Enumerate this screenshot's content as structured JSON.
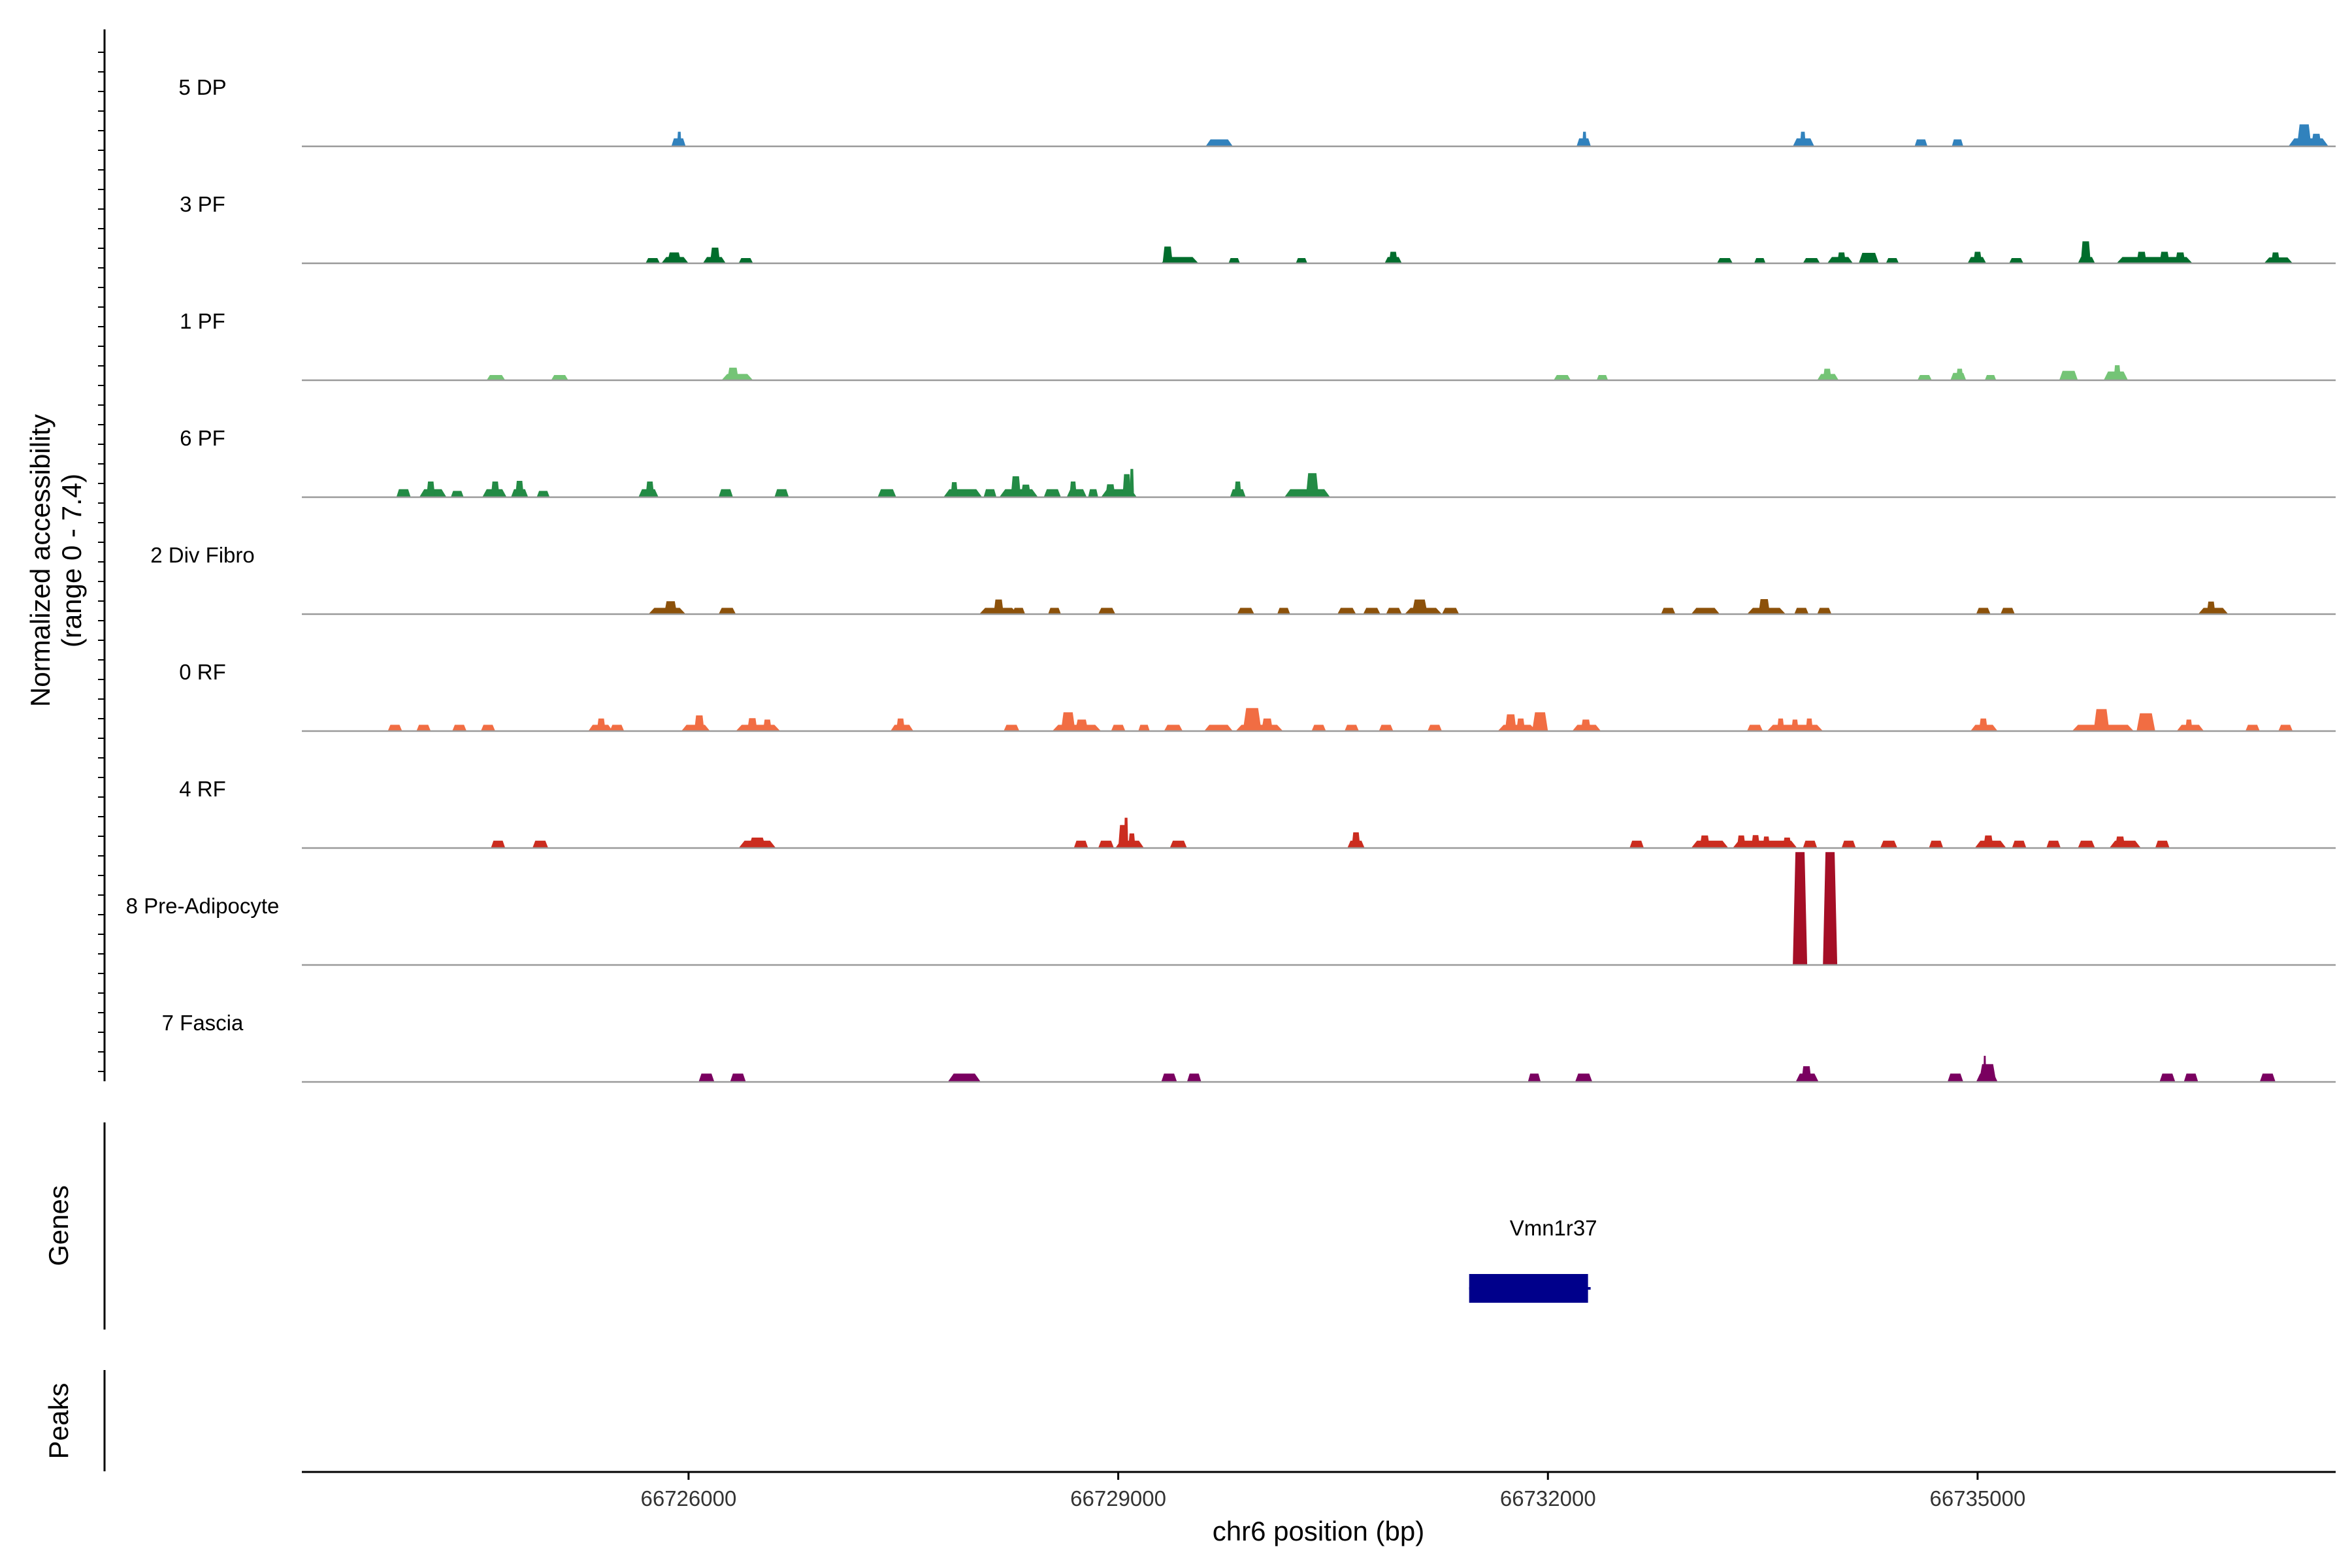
{
  "chart_data": {
    "type": "area",
    "title": "",
    "xlabel": "chr6 position (bp)",
    "x_range": [
      66723300,
      66737500
    ],
    "x_ticks": [
      66726000,
      66729000,
      66732000,
      66735000
    ],
    "x_tick_labels": [
      "66726000",
      "66729000",
      "66732000",
      "66735000"
    ],
    "ylabel_line1": "Normalized accessibility",
    "ylabel_line2": "(range 0 - 7.4)",
    "y_range": [
      0,
      7.4
    ],
    "panels": {
      "genes_label": "Genes",
      "peaks_label": "Peaks"
    },
    "tracks": [
      {
        "name": "5 DP",
        "color": "#3182bd",
        "peaks": [
          [
            66725880,
            66725980,
            0.38
          ],
          [
            66725920,
            66725950,
            0.7
          ],
          [
            66729610,
            66729800,
            0.33
          ],
          [
            66732200,
            66732300,
            0.38
          ],
          [
            66732240,
            66732270,
            0.7
          ],
          [
            66733710,
            66733860,
            0.38
          ],
          [
            66733760,
            66733800,
            0.7
          ],
          [
            66734560,
            66734650,
            0.33
          ],
          [
            66734820,
            66734900,
            0.33
          ],
          [
            66737170,
            66737450,
            0.38
          ],
          [
            66737230,
            66737330,
            1.05
          ],
          [
            66737330,
            66737400,
            0.6
          ]
        ]
      },
      {
        "name": "3 PF",
        "color": "#006d2c",
        "peaks": [
          [
            66725700,
            66725800,
            0.25
          ],
          [
            66725810,
            66726000,
            0.3
          ],
          [
            66725850,
            66725950,
            0.52
          ],
          [
            66726100,
            66726260,
            0.3
          ],
          [
            66726150,
            66726220,
            0.75
          ],
          [
            66726350,
            66726450,
            0.25
          ],
          [
            66729300,
            66729560,
            0.3
          ],
          [
            66729310,
            66729380,
            0.8
          ],
          [
            66729770,
            66729850,
            0.25
          ],
          [
            66730240,
            66730320,
            0.25
          ],
          [
            66730860,
            66730980,
            0.3
          ],
          [
            66730890,
            66730950,
            0.55
          ],
          [
            66733180,
            66733290,
            0.25
          ],
          [
            66733440,
            66733520,
            0.25
          ],
          [
            66733780,
            66733900,
            0.25
          ],
          [
            66733950,
            66734130,
            0.3
          ],
          [
            66734020,
            66734080,
            0.52
          ],
          [
            66734170,
            66734310,
            0.5
          ],
          [
            66734360,
            66734450,
            0.25
          ],
          [
            66734930,
            66735060,
            0.3
          ],
          [
            66734970,
            66735030,
            0.55
          ],
          [
            66735220,
            66735320,
            0.25
          ],
          [
            66735700,
            66735820,
            0.3
          ],
          [
            66735720,
            66735790,
            1.05
          ],
          [
            66735970,
            66736500,
            0.3
          ],
          [
            66736110,
            66736180,
            0.55
          ],
          [
            66736270,
            66736340,
            0.55
          ],
          [
            66736380,
            66736450,
            0.52
          ],
          [
            66737000,
            66737200,
            0.28
          ],
          [
            66737050,
            66737110,
            0.52
          ]
        ]
      },
      {
        "name": "1 PF",
        "color": "#74c476",
        "peaks": [
          [
            66724590,
            66724720,
            0.25
          ],
          [
            66725040,
            66725160,
            0.25
          ],
          [
            66726230,
            66726450,
            0.3
          ],
          [
            66726270,
            66726350,
            0.6
          ],
          [
            66732040,
            66732160,
            0.25
          ],
          [
            66732340,
            66732420,
            0.25
          ],
          [
            66733880,
            66734030,
            0.3
          ],
          [
            66733920,
            66733980,
            0.55
          ],
          [
            66734580,
            66734680,
            0.25
          ],
          [
            66734810,
            66734920,
            0.35
          ],
          [
            66734850,
            66734900,
            0.55
          ],
          [
            66735050,
            66735130,
            0.25
          ],
          [
            66735570,
            66735700,
            0.45
          ],
          [
            66735880,
            66736050,
            0.42
          ],
          [
            66735950,
            66736000,
            0.72
          ]
        ]
      },
      {
        "name": "6 PF",
        "color": "#238b45",
        "peaks": [
          [
            66723960,
            66724060,
            0.38
          ],
          [
            66724120,
            66724310,
            0.38
          ],
          [
            66724170,
            66724230,
            0.75
          ],
          [
            66724340,
            66724430,
            0.3
          ],
          [
            66724560,
            66724730,
            0.38
          ],
          [
            66724620,
            66724680,
            0.75
          ],
          [
            66724760,
            66724880,
            0.38
          ],
          [
            66724790,
            66724850,
            0.78
          ],
          [
            66724940,
            66725030,
            0.3
          ],
          [
            66725650,
            66725790,
            0.38
          ],
          [
            66725700,
            66725760,
            0.75
          ],
          [
            66726210,
            66726310,
            0.38
          ],
          [
            66726600,
            66726700,
            0.38
          ],
          [
            66727320,
            66727450,
            0.38
          ],
          [
            66727780,
            66728050,
            0.38
          ],
          [
            66727830,
            66727880,
            0.72
          ],
          [
            66728060,
            66728150,
            0.38
          ],
          [
            66728170,
            66728440,
            0.38
          ],
          [
            66728250,
            66728320,
            1.0
          ],
          [
            66728320,
            66728390,
            0.6
          ],
          [
            66728480,
            66728600,
            0.38
          ],
          [
            66728640,
            66728780,
            0.38
          ],
          [
            66728660,
            66728710,
            0.75
          ],
          [
            66728790,
            66728860,
            0.38
          ],
          [
            66728880,
            66729130,
            0.38
          ],
          [
            66728910,
            66728980,
            0.62
          ],
          [
            66729030,
            66729090,
            1.1
          ],
          [
            66729080,
            66729110,
            1.35
          ],
          [
            66729780,
            66729890,
            0.38
          ],
          [
            66729810,
            66729860,
            0.75
          ],
          [
            66730160,
            66730480,
            0.38
          ],
          [
            66730310,
            66730400,
            1.15
          ]
        ]
      },
      {
        "name": "2 Div Fibro",
        "color": "#8c510a",
        "peaks": [
          [
            66725720,
            66725980,
            0.3
          ],
          [
            66725830,
            66725920,
            0.62
          ],
          [
            66726210,
            66726330,
            0.3
          ],
          [
            66728030,
            66728300,
            0.3
          ],
          [
            66728130,
            66728200,
            0.7
          ],
          [
            66728260,
            66728350,
            0.3
          ],
          [
            66728510,
            66728600,
            0.3
          ],
          [
            66728860,
            66728980,
            0.3
          ],
          [
            66729830,
            66729950,
            0.3
          ],
          [
            66730110,
            66730200,
            0.3
          ],
          [
            66730530,
            66730660,
            0.3
          ],
          [
            66730710,
            66730830,
            0.3
          ],
          [
            66730870,
            66730980,
            0.3
          ],
          [
            66731000,
            66731260,
            0.3
          ],
          [
            66731050,
            66731160,
            0.7
          ],
          [
            66731260,
            66731380,
            0.3
          ],
          [
            66732790,
            66732890,
            0.3
          ],
          [
            66733000,
            66733200,
            0.3
          ],
          [
            66733390,
            66733660,
            0.3
          ],
          [
            66733470,
            66733550,
            0.72
          ],
          [
            66733720,
            66733820,
            0.3
          ],
          [
            66733880,
            66733980,
            0.3
          ],
          [
            66734990,
            66735090,
            0.3
          ],
          [
            66735160,
            66735260,
            0.3
          ],
          [
            66736540,
            66736750,
            0.3
          ],
          [
            66736600,
            66736660,
            0.6
          ]
        ]
      },
      {
        "name": "0 RF",
        "color": "#f16d43",
        "peaks": [
          [
            66723900,
            66724000,
            0.3
          ],
          [
            66724100,
            66724200,
            0.3
          ],
          [
            66724350,
            66724450,
            0.3
          ],
          [
            66724550,
            66724650,
            0.3
          ],
          [
            66725300,
            66725470,
            0.3
          ],
          [
            66725360,
            66725420,
            0.6
          ],
          [
            66725450,
            66725550,
            0.3
          ],
          [
            66725950,
            66726150,
            0.3
          ],
          [
            66726040,
            66726110,
            0.75
          ],
          [
            66726330,
            66726640,
            0.3
          ],
          [
            66726410,
            66726480,
            0.62
          ],
          [
            66726520,
            66726580,
            0.55
          ],
          [
            66727410,
            66727570,
            0.3
          ],
          [
            66727450,
            66727510,
            0.6
          ],
          [
            66728200,
            66728310,
            0.3
          ],
          [
            66728540,
            66728880,
            0.3
          ],
          [
            66728600,
            66728700,
            0.9
          ],
          [
            66728700,
            66728790,
            0.55
          ],
          [
            66728950,
            66729050,
            0.3
          ],
          [
            66729140,
            66729220,
            0.3
          ],
          [
            66729320,
            66729450,
            0.3
          ],
          [
            66729600,
            66729800,
            0.3
          ],
          [
            66729820,
            66730150,
            0.3
          ],
          [
            66729870,
            66730000,
            1.1
          ],
          [
            66730000,
            66730080,
            0.6
          ],
          [
            66730350,
            66730450,
            0.3
          ],
          [
            66730580,
            66730680,
            0.3
          ],
          [
            66730820,
            66730920,
            0.3
          ],
          [
            66731160,
            66731260,
            0.3
          ],
          [
            66731650,
            66731920,
            0.3
          ],
          [
            66731700,
            66731780,
            0.8
          ],
          [
            66731780,
            66731840,
            0.6
          ],
          [
            66731890,
            66732000,
            0.9
          ],
          [
            66732170,
            66732370,
            0.3
          ],
          [
            66732230,
            66732300,
            0.55
          ],
          [
            66733390,
            66733500,
            0.3
          ],
          [
            66733530,
            66733920,
            0.3
          ],
          [
            66733600,
            66733650,
            0.6
          ],
          [
            66733700,
            66733750,
            0.55
          ],
          [
            66733800,
            66733850,
            0.6
          ],
          [
            66734950,
            66735140,
            0.3
          ],
          [
            66735010,
            66735070,
            0.6
          ],
          [
            66735660,
            66736090,
            0.3
          ],
          [
            66735810,
            66735920,
            1.05
          ],
          [
            66736110,
            66736240,
            0.85
          ],
          [
            66736390,
            66736580,
            0.3
          ],
          [
            66736450,
            66736500,
            0.55
          ],
          [
            66736870,
            66736970,
            0.3
          ],
          [
            66737100,
            66737200,
            0.3
          ]
        ]
      },
      {
        "name": "4 RF",
        "color": "#cb2c1f",
        "peaks": [
          [
            66724620,
            66724720,
            0.35
          ],
          [
            66724910,
            66725020,
            0.35
          ],
          [
            66726350,
            66726610,
            0.35
          ],
          [
            66726420,
            66726540,
            0.5
          ],
          [
            66728690,
            66728790,
            0.35
          ],
          [
            66728860,
            66728970,
            0.35
          ],
          [
            66728980,
            66729180,
            0.35
          ],
          [
            66729000,
            66729070,
            1.1
          ],
          [
            66729040,
            66729070,
            1.45
          ],
          [
            66729070,
            66729120,
            0.7
          ],
          [
            66729360,
            66729480,
            0.35
          ],
          [
            66730600,
            66730720,
            0.35
          ],
          [
            66730630,
            66730690,
            0.75
          ],
          [
            66732570,
            66732670,
            0.35
          ],
          [
            66733000,
            66733260,
            0.35
          ],
          [
            66733060,
            66733130,
            0.6
          ],
          [
            66733290,
            66733740,
            0.35
          ],
          [
            66733320,
            66733380,
            0.6
          ],
          [
            66733420,
            66733480,
            0.62
          ],
          [
            66733500,
            66733550,
            0.55
          ],
          [
            66733640,
            66733700,
            0.5
          ],
          [
            66733780,
            66733880,
            0.35
          ],
          [
            66734050,
            66734150,
            0.35
          ],
          [
            66734320,
            66734440,
            0.35
          ],
          [
            66734660,
            66734760,
            0.35
          ],
          [
            66734980,
            66735200,
            0.35
          ],
          [
            66735040,
            66735110,
            0.6
          ],
          [
            66735240,
            66735340,
            0.35
          ],
          [
            66735480,
            66735580,
            0.35
          ],
          [
            66735700,
            66735820,
            0.35
          ],
          [
            66735920,
            66736140,
            0.35
          ],
          [
            66735960,
            66736030,
            0.55
          ],
          [
            66736240,
            66736340,
            0.35
          ]
        ]
      },
      {
        "name": "8 Pre-Adipocyte",
        "color": "#a50f26",
        "peaks": [
          [
            66733710,
            66733810,
            5.4
          ],
          [
            66733920,
            66734020,
            5.4
          ]
        ]
      },
      {
        "name": "7 Fascia",
        "color": "#7a0060",
        "peaks": [
          [
            66726070,
            66726180,
            0.4
          ],
          [
            66726290,
            66726400,
            0.4
          ],
          [
            66727810,
            66728040,
            0.4
          ],
          [
            66729300,
            66729410,
            0.4
          ],
          [
            66729480,
            66729580,
            0.4
          ],
          [
            66731860,
            66731950,
            0.4
          ],
          [
            66732190,
            66732310,
            0.4
          ],
          [
            66733730,
            66733890,
            0.4
          ],
          [
            66733770,
            66733840,
            0.75
          ],
          [
            66734790,
            66734900,
            0.4
          ],
          [
            66734990,
            66735140,
            0.4
          ],
          [
            66735010,
            66735130,
            0.85
          ],
          [
            66735040,
            66735060,
            1.25
          ],
          [
            66736270,
            66736380,
            0.4
          ],
          [
            66736440,
            66736540,
            0.4
          ],
          [
            66736970,
            66737080,
            0.4
          ]
        ]
      }
    ],
    "genes": [
      {
        "name": "Vmn1r37",
        "start": 66731450,
        "end": 66732280,
        "color": "#00008b"
      }
    ]
  }
}
